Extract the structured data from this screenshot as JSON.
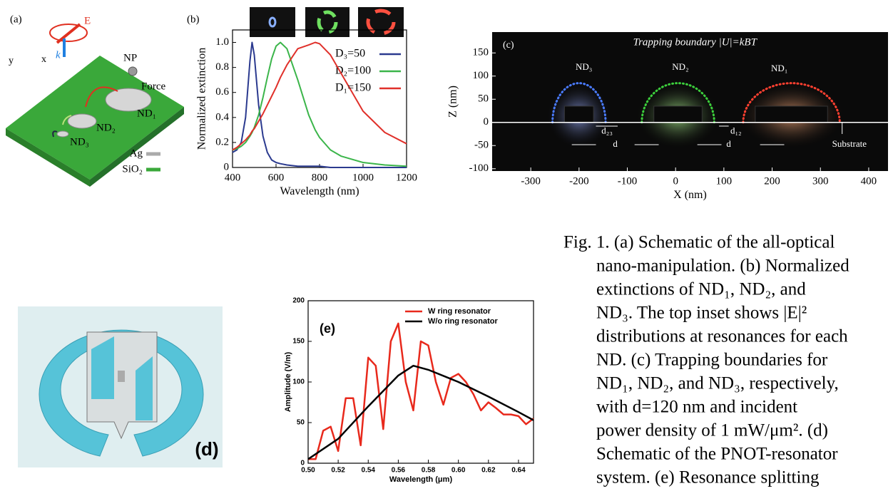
{
  "panels": {
    "a": {
      "label": "(a)",
      "texts": [
        "E",
        "k",
        "y",
        "x",
        "NP",
        "Force",
        "ND₁",
        "ND₂",
        "ND₃",
        "Ag",
        "SiO₂"
      ]
    },
    "d": {
      "label": "(d)"
    }
  },
  "chart_data": [
    {
      "type": "line",
      "panel_label": "(b)",
      "x_label": "Wavelength (nm)",
      "y_label": "Normalized extinction",
      "x": [
        400,
        420,
        440,
        460,
        480,
        490,
        500,
        520,
        540,
        560,
        580,
        600,
        620,
        650,
        700,
        750,
        780,
        800,
        850,
        900,
        1000,
        1100,
        1200
      ],
      "series": [
        {
          "name": "D₃=50",
          "color": "#2b3a8f",
          "values": [
            0.12,
            0.14,
            0.2,
            0.4,
            0.85,
            1.0,
            0.9,
            0.5,
            0.25,
            0.12,
            0.06,
            0.04,
            0.03,
            0.02,
            0.01,
            0.01,
            0.01,
            0.01,
            0,
            0,
            0,
            0,
            0
          ]
        },
        {
          "name": "D₂=100",
          "color": "#3bb54a",
          "values": [
            0.14,
            0.15,
            0.17,
            0.2,
            0.25,
            0.28,
            0.32,
            0.42,
            0.56,
            0.72,
            0.87,
            0.97,
            1.0,
            0.95,
            0.7,
            0.42,
            0.3,
            0.24,
            0.14,
            0.09,
            0.04,
            0.02,
            0.01
          ]
        },
        {
          "name": "D₁=150",
          "color": "#e0302a",
          "values": [
            0.14,
            0.16,
            0.19,
            0.22,
            0.26,
            0.29,
            0.31,
            0.37,
            0.43,
            0.5,
            0.57,
            0.64,
            0.72,
            0.82,
            0.95,
            0.98,
            1.0,
            0.99,
            0.9,
            0.75,
            0.45,
            0.28,
            0.19
          ]
        }
      ],
      "xlim": [
        400,
        1200
      ],
      "xticks": [
        400,
        600,
        800,
        1000,
        1200
      ],
      "ylim": [
        0,
        1.1
      ],
      "yticks": [
        0,
        0.2,
        0.4,
        0.6,
        0.8,
        {
          "value": 1,
          "label": "1.0"
        }
      ]
    },
    {
      "type": "line",
      "panel_label": "(e)",
      "x_label": "Wavelength (μm)",
      "y_label": "Amplitude (V/m)",
      "series": [
        {
          "name": "W ring resonator",
          "color": "#e8291c",
          "x": [
            0.5,
            0.505,
            0.51,
            0.515,
            0.52,
            0.525,
            0.53,
            0.535,
            0.54,
            0.545,
            0.55,
            0.555,
            0.56,
            0.565,
            0.57,
            0.575,
            0.58,
            0.585,
            0.59,
            0.595,
            0.6,
            0.605,
            0.61,
            0.615,
            0.62,
            0.625,
            0.63,
            0.635,
            0.64,
            0.645,
            0.65
          ],
          "values": [
            5,
            5,
            40,
            45,
            15,
            80,
            80,
            22,
            130,
            120,
            42,
            150,
            172,
            100,
            65,
            150,
            145,
            100,
            72,
            105,
            110,
            100,
            85,
            65,
            75,
            68,
            60,
            60,
            58,
            48,
            55
          ]
        },
        {
          "name": "W/o ring resonator",
          "color": "#000000",
          "x": [
            0.5,
            0.52,
            0.54,
            0.56,
            0.57,
            0.58,
            0.6,
            0.62,
            0.64,
            0.65
          ],
          "values": [
            5,
            30,
            70,
            108,
            120,
            115,
            100,
            82,
            63,
            53
          ]
        }
      ],
      "xlim": [
        0.5,
        0.65
      ],
      "xticks": [
        {
          "value": 0.5,
          "label": "0.50"
        },
        0.52,
        0.54,
        0.56,
        0.58,
        {
          "value": 0.6,
          "label": "0.60"
        },
        0.62,
        0.64
      ],
      "ylim": [
        0,
        200
      ],
      "yticks": [
        0,
        50,
        100,
        150,
        200
      ]
    },
    {
      "type": "field_map",
      "panel_label": "(c)",
      "title": "Trapping boundary |U|=kBT",
      "x_label": "X (nm)",
      "y_label": "Z (nm)",
      "annotations": [
        "ND₃",
        "ND₂",
        "ND₁",
        "d₂₃",
        "d₁₂",
        "d",
        "d",
        "Substrate"
      ],
      "xlim": [
        -380,
        440
      ],
      "xticks": [
        -300,
        -200,
        -100,
        0,
        100,
        200,
        300,
        400
      ],
      "ylim": [
        -105,
        195
      ],
      "yticks": [
        -100,
        -50,
        0,
        50,
        100,
        150
      ]
    }
  ],
  "caption": {
    "lines": [
      "Fig. 1. (a) Schematic of the all-optical",
      "nano-manipulation. (b) Normalized",
      "extinctions of ND₁, ND₂, and",
      "ND₃.  The top inset shows |E|²",
      "distributions at resonances for each",
      "ND. (c) Trapping boundaries for",
      "ND₁, ND₂, and ND₃, respectively,",
      "with d=120 nm and incident",
      "power density of 1 mW/μm². (d)",
      "Schematic of the PNOT-resonator",
      "system. (e) Resonance splitting"
    ]
  }
}
